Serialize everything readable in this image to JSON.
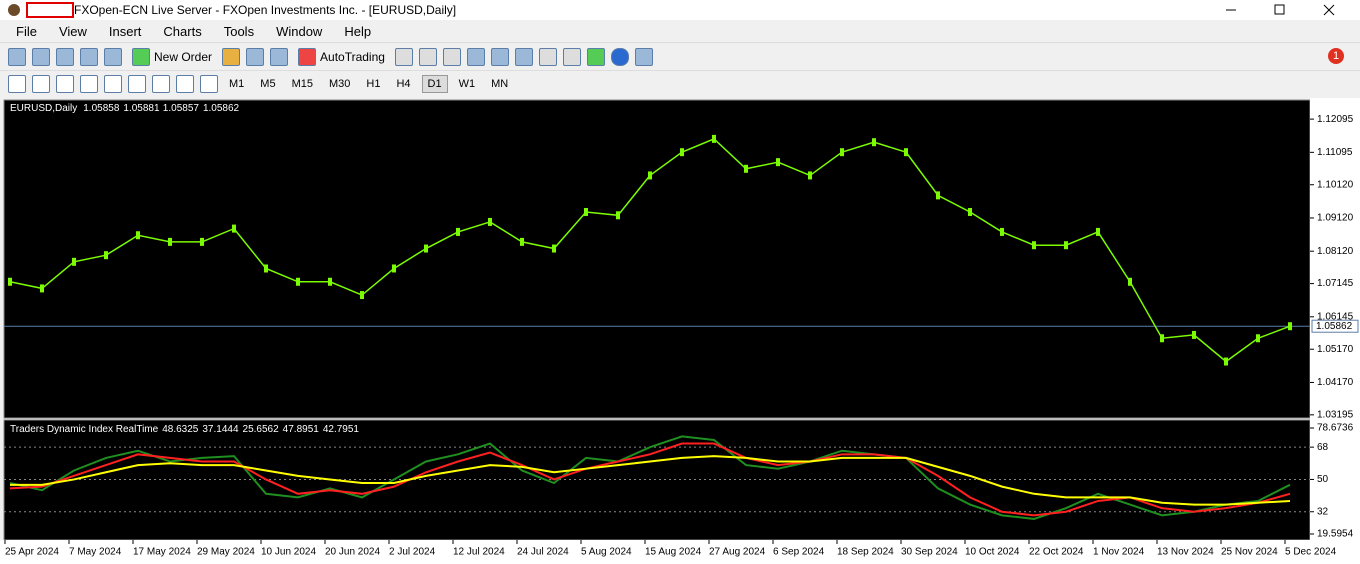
{
  "window": {
    "title": "FXOpen-ECN Live Server - FXOpen Investments Inc. - [EURUSD,Daily]",
    "notification_count": "1"
  },
  "menu": [
    "File",
    "View",
    "Insert",
    "Charts",
    "Tools",
    "Window",
    "Help"
  ],
  "toolbar": {
    "new_order": "New Order",
    "auto_trading": "AutoTrading",
    "timeframes": [
      "M1",
      "M5",
      "M15",
      "M30",
      "H1",
      "H4",
      "D1",
      "W1",
      "MN"
    ],
    "active_timeframe": "D1"
  },
  "price_chart": {
    "symbol": "EURUSD,Daily",
    "quote": [
      1.05858,
      1.05881,
      1.05857,
      1.05862
    ],
    "ylim": [
      1.031,
      1.1261
    ],
    "yticks": [
      1.12095,
      1.11095,
      {
        "value": 1.1012,
        "label": "1.10120"
      },
      {
        "value": 1.0912,
        "label": "1.09120"
      },
      {
        "value": 1.0812,
        "label": "1.08120"
      },
      1.07145,
      1.06145,
      {
        "value": 1.0517,
        "label": "1.05170"
      },
      {
        "value": 1.0417,
        "label": "1.04170"
      },
      1.03195
    ],
    "current_price": 1.05862,
    "closes": [
      1.072,
      1.07,
      1.078,
      1.08,
      1.086,
      1.084,
      1.084,
      1.088,
      1.076,
      1.072,
      1.072,
      1.068,
      1.076,
      1.082,
      1.087,
      1.09,
      1.084,
      1.082,
      1.093,
      1.092,
      1.104,
      1.111,
      1.115,
      1.106,
      1.108,
      1.104,
      1.111,
      1.114,
      1.111,
      1.098,
      1.093,
      1.087,
      1.083,
      1.083,
      1.087,
      1.072,
      1.055,
      1.056,
      1.048,
      1.055,
      1.05862
    ],
    "color": "#7cfc00"
  },
  "indicator": {
    "name": "Traders Dynamic Index RealTime",
    "readout": [
      48.6325,
      37.1444,
      25.6562,
      47.8951,
      42.7951
    ],
    "ylim": [
      19.5954,
      78.6736
    ],
    "yticks": [
      78.6736,
      68,
      50,
      32,
      19.5954
    ],
    "levels": [
      68,
      50,
      32
    ],
    "series": [
      {
        "color": "#1f8f1f",
        "values": [
          48,
          44,
          55,
          62,
          66,
          60,
          62,
          63,
          42,
          40,
          45,
          40,
          50,
          60,
          64,
          70,
          55,
          48,
          62,
          60,
          68,
          74,
          72,
          58,
          56,
          60,
          66,
          64,
          62,
          45,
          36,
          30,
          28,
          34,
          42,
          36,
          30,
          32,
          36,
          38,
          47
        ]
      },
      {
        "color": "#ff2020",
        "values": [
          45,
          46,
          52,
          58,
          64,
          62,
          60,
          60,
          50,
          42,
          44,
          42,
          46,
          54,
          60,
          65,
          58,
          50,
          56,
          60,
          64,
          70,
          70,
          62,
          58,
          60,
          64,
          64,
          62,
          52,
          40,
          32,
          30,
          32,
          38,
          40,
          34,
          32,
          34,
          37,
          42
        ]
      },
      {
        "color": "#ffff00",
        "values": [
          47,
          47,
          50,
          54,
          58,
          59,
          58,
          58,
          55,
          52,
          50,
          48,
          48,
          52,
          55,
          58,
          57,
          54,
          56,
          58,
          60,
          62,
          63,
          62,
          60,
          60,
          62,
          62,
          62,
          57,
          52,
          46,
          42,
          40,
          40,
          40,
          37,
          36,
          36,
          37,
          38
        ]
      }
    ]
  },
  "date_labels": [
    "25 Apr 2024",
    "7 May 2024",
    "17 May 2024",
    "29 May 2024",
    "10 Jun 2024",
    "20 Jun 2024",
    "2 Jul 2024",
    "12 Jul 2024",
    "24 Jul 2024",
    "5 Aug 2024",
    "15 Aug 2024",
    "27 Aug 2024",
    "6 Sep 2024",
    "18 Sep 2024",
    "30 Sep 2024",
    "10 Oct 2024",
    "22 Oct 2024",
    "1 Nov 2024",
    "13 Nov 2024",
    "25 Nov 2024",
    "5 Dec 2024"
  ]
}
